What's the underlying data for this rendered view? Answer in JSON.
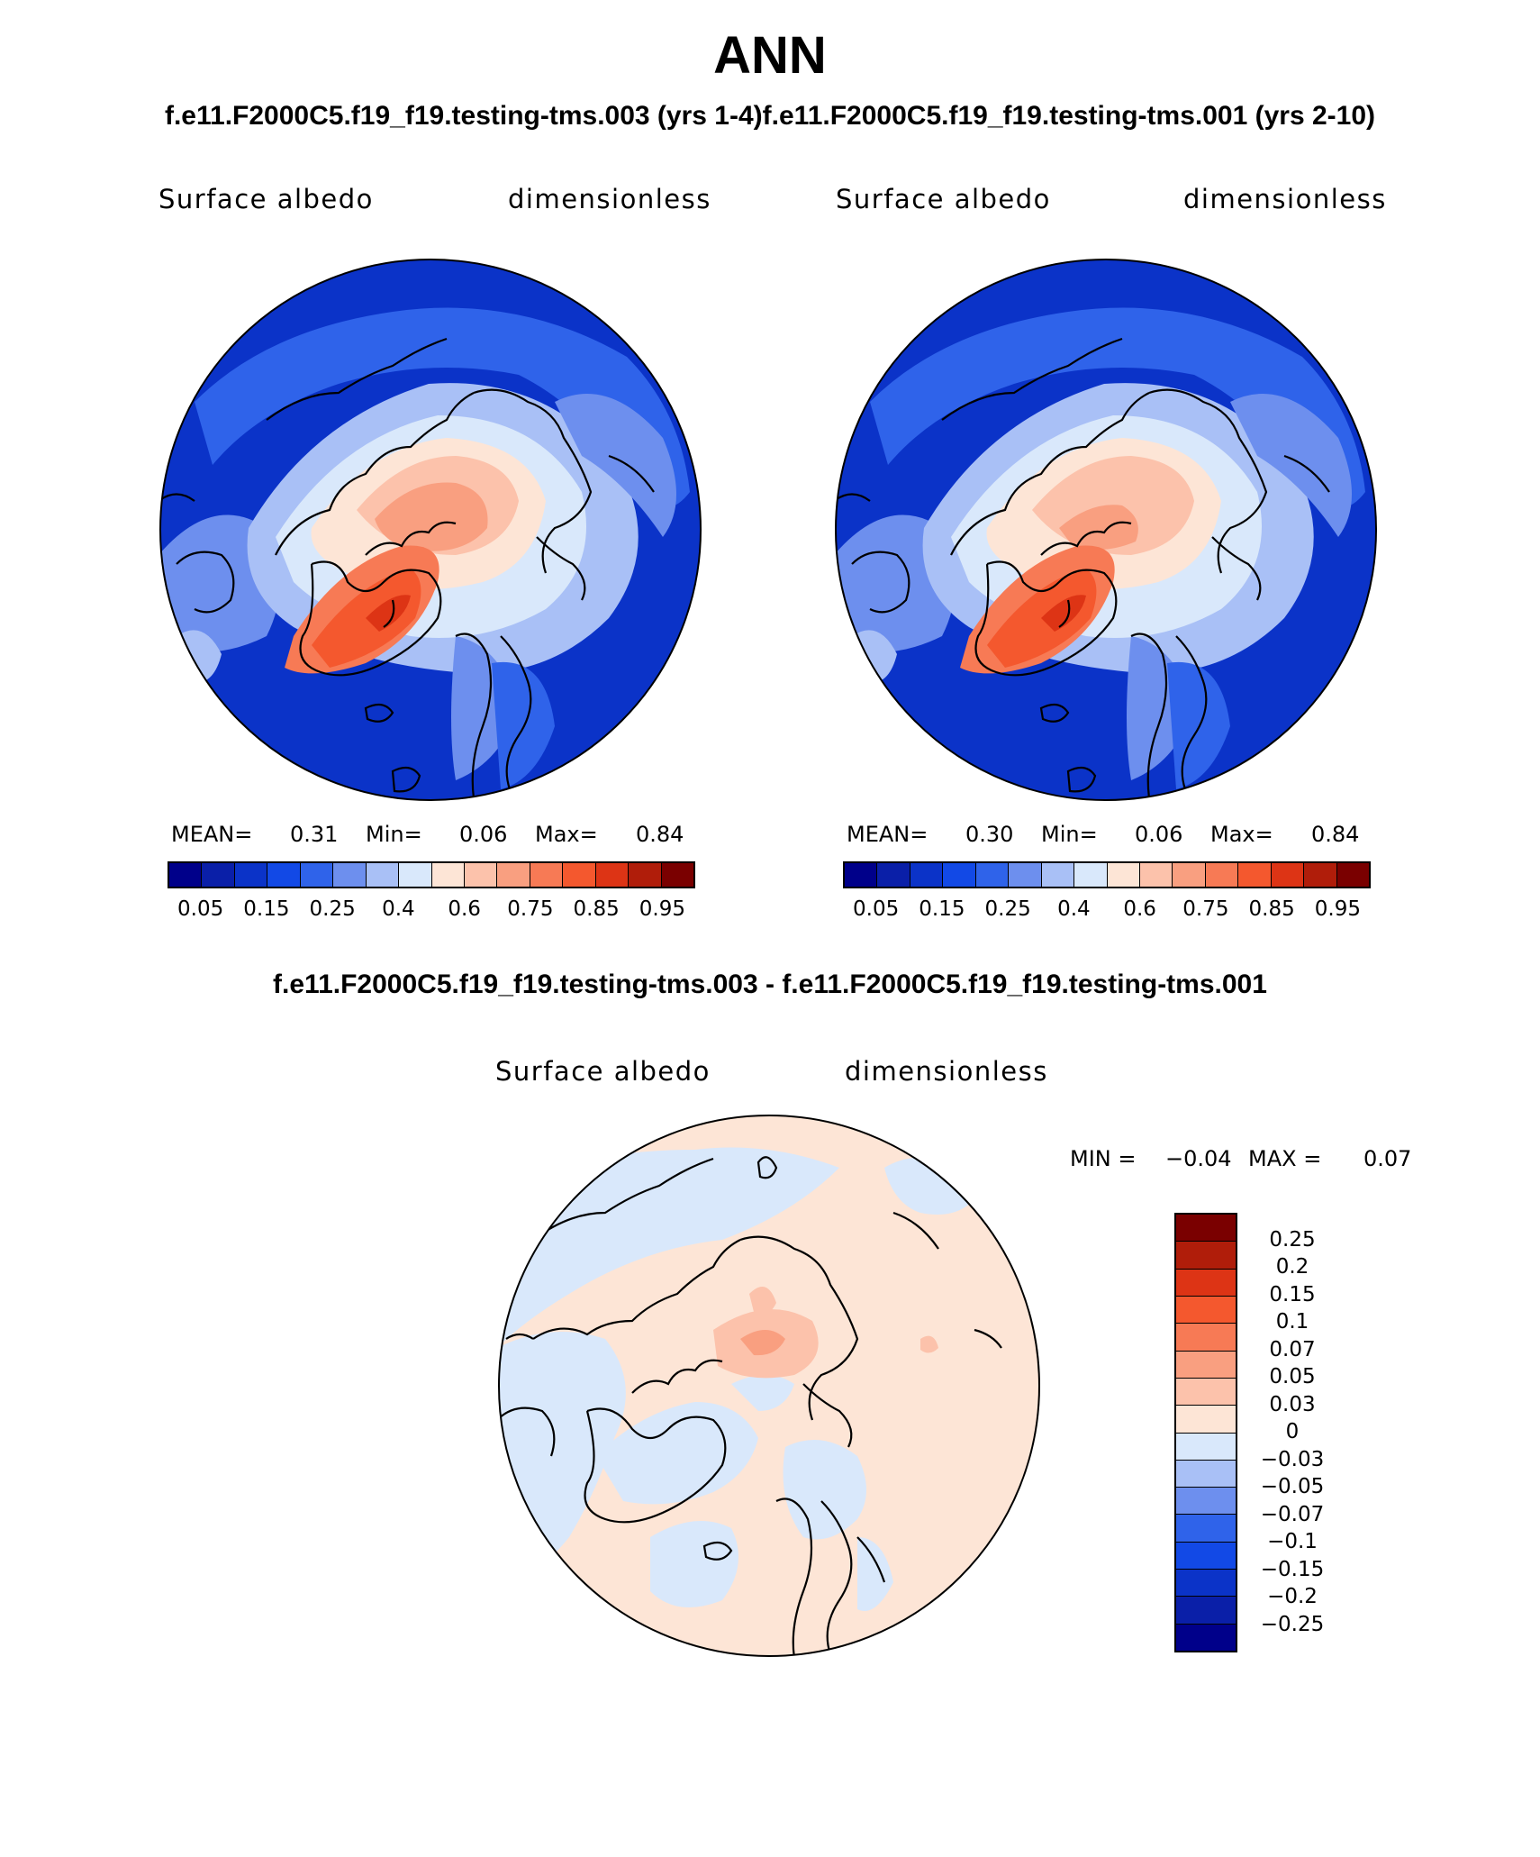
{
  "title": "ANN",
  "subtitle_left": "f.e11.F2000C5.f19_f19.testing-tms.003 (yrs 1-4)",
  "subtitle_right": "f.e11.F2000C5.f19_f19.testing-tms.001 (yrs 2-10)",
  "diff_title": "f.e11.F2000C5.f19_f19.testing-tms.003 - f.e11.F2000C5.f19_f19.testing-tms.001",
  "panels": [
    {
      "variable": "Surface albedo",
      "units": "dimensionless",
      "mean_label": "MEAN=",
      "mean": "0.31",
      "min_label": "Min=",
      "min": "0.06",
      "max_label": "Max=",
      "max": "0.84"
    },
    {
      "variable": "Surface albedo",
      "units": "dimensionless",
      "mean_label": "MEAN=",
      "mean": "0.30",
      "min_label": "Min=",
      "min": "0.06",
      "max_label": "Max=",
      "max": "0.84"
    }
  ],
  "diff_panel": {
    "variable": "Surface albedo",
    "units": "dimensionless",
    "min_label": "MIN =",
    "min": "−0.04",
    "max_label": "MAX =",
    "max": "0.07"
  },
  "colorbar_main": {
    "colors": [
      "#00008a",
      "#0a1fa8",
      "#0b33c8",
      "#1249e6",
      "#2f63ea",
      "#6d8fee",
      "#a9c0f6",
      "#d9e8fb",
      "#fde5d6",
      "#fcc2ab",
      "#f99f80",
      "#f77a55",
      "#f4582e",
      "#dd3415",
      "#b01d0a",
      "#7a0000"
    ],
    "tick_labels": [
      "0.05",
      "0.15",
      "0.25",
      "0.4",
      "0.6",
      "0.75",
      "0.85",
      "0.95"
    ]
  },
  "colorbar_diff": {
    "colors": [
      "#7a0000",
      "#b01d0a",
      "#dd3415",
      "#f4582e",
      "#f77a55",
      "#f99f80",
      "#fcc2ab",
      "#fde5d6",
      "#d9e8fb",
      "#a9c0f6",
      "#6d8fee",
      "#2f63ea",
      "#1249e6",
      "#0b33c8",
      "#0a1fa8",
      "#00008a"
    ],
    "tick_labels": [
      "0.25",
      "0.2",
      "0.15",
      "0.1",
      "0.07",
      "0.05",
      "0.03",
      "0",
      "−0.03",
      "−0.05",
      "−0.07",
      "−0.1",
      "−0.15",
      "−0.2",
      "−0.25"
    ]
  }
}
